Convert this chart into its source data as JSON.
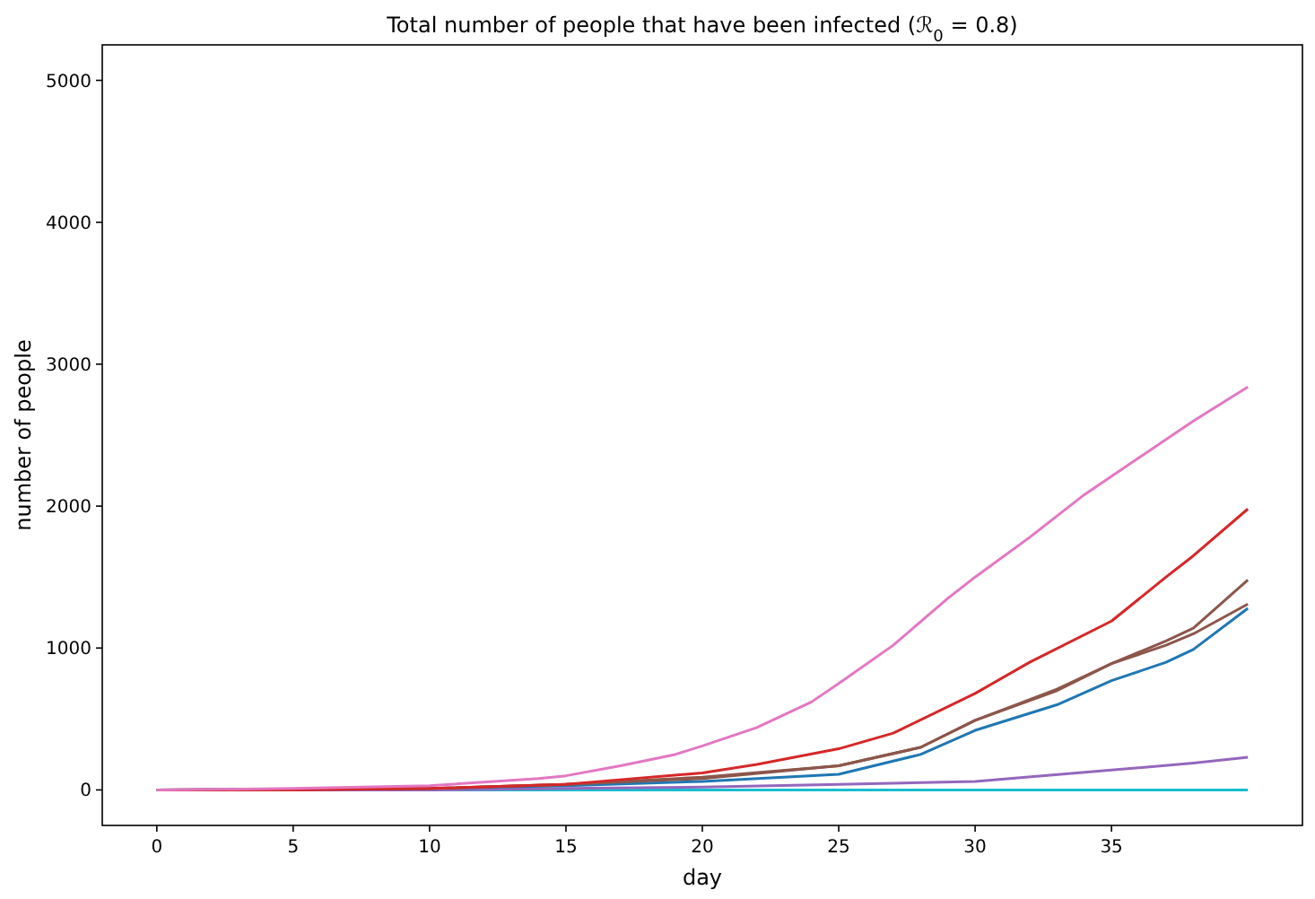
{
  "chart_data": {
    "type": "line",
    "title": "Total number of people that have been infected (ℛ$_{0}$ = 0.8)",
    "xlabel": "day",
    "ylabel": "number of people",
    "xlim": [
      -2,
      42
    ],
    "xticks": [
      0,
      5,
      10,
      15,
      20,
      25,
      30,
      35
    ],
    "ylim": [
      -250,
      5250
    ],
    "yticks": [
      0,
      1000,
      2000,
      3000,
      4000,
      5000
    ],
    "grid": false,
    "line_style": "solid",
    "series": [
      {
        "color": "#17becf",
        "x": [
          0,
          40
        ],
        "values": [
          0,
          0
        ]
      },
      {
        "color": "#9467bd",
        "x": [
          0,
          10,
          15,
          20,
          25,
          30,
          35,
          38,
          40
        ],
        "values": [
          0,
          0,
          10,
          20,
          40,
          60,
          140,
          190,
          230
        ]
      },
      {
        "color": "#1f77b4",
        "x": [
          0,
          10,
          15,
          20,
          25,
          28,
          30,
          33,
          35,
          37,
          38,
          40
        ],
        "values": [
          0,
          10,
          30,
          60,
          110,
          250,
          420,
          600,
          770,
          900,
          990,
          1280
        ]
      },
      {
        "color": "#8c564b",
        "x": [
          0,
          10,
          15,
          20,
          25,
          28,
          30,
          33,
          35,
          37,
          38,
          40
        ],
        "values": [
          0,
          10,
          40,
          80,
          170,
          300,
          490,
          700,
          890,
          1020,
          1100,
          1310
        ]
      },
      {
        "color": "#8c564b",
        "x": [
          0,
          10,
          15,
          20,
          25,
          28,
          30,
          33,
          35,
          37,
          38,
          40
        ],
        "values": [
          0,
          10,
          40,
          90,
          170,
          300,
          490,
          710,
          890,
          1050,
          1140,
          1480
        ]
      },
      {
        "color": "#d62728",
        "x": [
          0,
          5,
          10,
          15,
          20,
          22,
          25,
          27,
          30,
          32,
          35,
          37,
          38,
          40
        ],
        "values": [
          0,
          0,
          10,
          40,
          120,
          180,
          290,
          400,
          680,
          900,
          1190,
          1500,
          1650,
          1980
        ]
      },
      {
        "color": "#e377c2",
        "x": [
          0,
          5,
          10,
          14,
          15,
          17,
          19,
          20,
          22,
          24,
          25,
          27,
          29,
          30,
          32,
          34,
          36,
          38,
          39,
          40
        ],
        "values": [
          0,
          10,
          30,
          80,
          100,
          170,
          250,
          310,
          440,
          620,
          750,
          1020,
          1350,
          1500,
          1780,
          2080,
          2340,
          2600,
          2720,
          2840
        ]
      }
    ]
  }
}
